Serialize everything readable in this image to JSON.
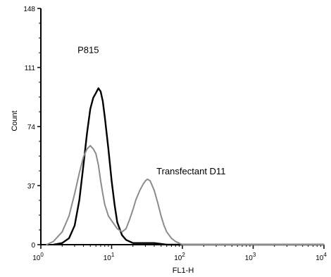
{
  "chart_data": {
    "type": "line",
    "title": "",
    "xlabel": "FL1-H",
    "ylabel": "Count",
    "x_scale": "log",
    "xlim": [
      1,
      10000
    ],
    "ylim": [
      0,
      148
    ],
    "x_ticks": [
      {
        "value": 1,
        "base": "10",
        "exp": "0"
      },
      {
        "value": 10,
        "base": "10",
        "exp": "1"
      },
      {
        "value": 100,
        "base": "10",
        "exp": "2"
      },
      {
        "value": 1000,
        "base": "10",
        "exp": "3"
      },
      {
        "value": 10000,
        "base": "10",
        "exp": "4"
      }
    ],
    "y_ticks": [
      "0",
      "37",
      "74",
      "111",
      "148"
    ],
    "grid": false,
    "series": [
      {
        "name": "P815",
        "color": "#000000",
        "x": [
          1.5,
          2.0,
          2.5,
          3.0,
          3.5,
          4.0,
          4.5,
          5.0,
          5.5,
          6.0,
          6.5,
          7.0,
          7.5,
          8.0,
          9.0,
          10.0,
          11.0,
          12.0,
          14.0,
          16.0,
          20.0,
          25.0,
          30.0,
          40.0,
          60.0,
          100.0,
          1000.0,
          10000.0
        ],
        "y": [
          0,
          1,
          4,
          12,
          28,
          50,
          70,
          85,
          92,
          95,
          98,
          96,
          90,
          80,
          60,
          40,
          25,
          14,
          6,
          3,
          1,
          1,
          1,
          1,
          0,
          0,
          0,
          0
        ]
      },
      {
        "name": "Transfectant D11",
        "color": "#8c8c8c",
        "x": [
          1.2,
          1.5,
          2.0,
          2.5,
          3.0,
          3.5,
          4.0,
          4.5,
          5.0,
          5.5,
          6.0,
          6.5,
          7.0,
          7.5,
          8.0,
          9.0,
          10.0,
          12.0,
          14.0,
          16.0,
          18.0,
          20.0,
          22.0,
          25.0,
          28.0,
          30.0,
          32.0,
          35.0,
          40.0,
          45.0,
          50.0,
          55.0,
          60.0,
          70.0,
          80.0,
          100.0,
          1000.0,
          10000.0
        ],
        "y": [
          0,
          2,
          8,
          18,
          32,
          45,
          55,
          60,
          62,
          60,
          57,
          50,
          40,
          32,
          25,
          18,
          15,
          10,
          8,
          10,
          16,
          22,
          28,
          34,
          38,
          40,
          41,
          40,
          34,
          26,
          18,
          12,
          8,
          4,
          2,
          0,
          0,
          0
        ]
      }
    ],
    "annotations": [
      {
        "text": "P815",
        "x": 3.3,
        "y": 120
      },
      {
        "text": "Transfectant D11",
        "x": 43,
        "y": 44
      }
    ]
  }
}
